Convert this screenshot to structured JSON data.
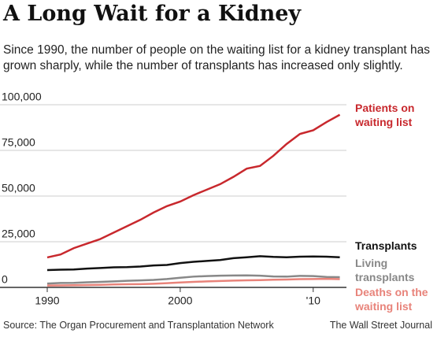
{
  "chart_data": {
    "type": "line",
    "title": "A Long Wait for a Kidney",
    "subtitle": "Since 1990, the number of people on the waiting list for a kidney transplant has grown sharply, while the number of transplants has increased only slightly.",
    "source": "Source: The Organ Procurement and Transplantation Network",
    "credit": "The Wall Street Journal",
    "x": [
      1990,
      1991,
      1992,
      1993,
      1994,
      1995,
      1996,
      1997,
      1998,
      1999,
      2000,
      2001,
      2002,
      2003,
      2004,
      2005,
      2006,
      2007,
      2008,
      2009,
      2010,
      2011,
      2012
    ],
    "xlim": [
      1990,
      2012.5
    ],
    "xticks": [
      1990,
      2000,
      {
        "value": 2010,
        "label": "'10"
      }
    ],
    "ylim": [
      0,
      100000
    ],
    "yticks": [
      0,
      {
        "value": 25000,
        "label": "25,000"
      },
      {
        "value": 50000,
        "label": "50,000"
      },
      {
        "value": 75000,
        "label": "75,000"
      },
      {
        "value": 100000,
        "label": "100,000"
      }
    ],
    "grid": true,
    "series": [
      {
        "name": "Patients on waiting list",
        "color": "#c8282d",
        "values": [
          16400,
          18000,
          21500,
          24000,
          26500,
          30000,
          33500,
          37000,
          41000,
          44500,
          47000,
          50500,
          53500,
          56500,
          60500,
          65000,
          66500,
          72000,
          78500,
          84000,
          86000,
          90500,
          94500
        ]
      },
      {
        "name": "Transplants",
        "color": "#111111",
        "values": [
          9500,
          9700,
          9800,
          10300,
          10600,
          11000,
          11100,
          11400,
          12000,
          12300,
          13300,
          14000,
          14500,
          15000,
          16000,
          16500,
          17100,
          16700,
          16500,
          16800,
          16900,
          16800,
          16500
        ]
      },
      {
        "name": "Living transplants",
        "color": "#888888",
        "values": [
          2100,
          2400,
          2500,
          2800,
          3000,
          3300,
          3600,
          3800,
          4100,
          4600,
          5300,
          5900,
          6200,
          6400,
          6500,
          6600,
          6400,
          6000,
          5900,
          6300,
          6200,
          5700,
          5600
        ]
      },
      {
        "name": "Deaths on the waiting list",
        "color": "#e8837a",
        "values": [
          1000,
          1100,
          1200,
          1300,
          1400,
          1600,
          1700,
          1800,
          2000,
          2300,
          2700,
          3000,
          3300,
          3500,
          3700,
          3900,
          4000,
          4200,
          4300,
          4500,
          4600,
          4700,
          4500
        ]
      }
    ]
  }
}
